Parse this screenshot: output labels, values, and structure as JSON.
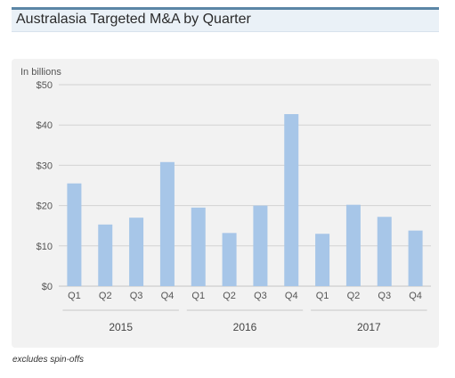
{
  "header": {
    "title": "Australasia Targeted M&A by Quarter",
    "accent_color": "#5b86a6",
    "background_color": "#eaf1f7"
  },
  "footnote": "excludes spin-offs",
  "chart_data": {
    "type": "bar",
    "title": "Australasia Targeted M&A by Quarter",
    "unit_label": "In billions",
    "xlabel": "",
    "ylabel": "",
    "ylim": [
      0,
      50
    ],
    "yticks": [
      "$0",
      "$10",
      "$20",
      "$30",
      "$40",
      "$50"
    ],
    "ytick_values": [
      0,
      10,
      20,
      30,
      40,
      50
    ],
    "grid": true,
    "bar_color": "#a7c6e8",
    "groups": [
      {
        "label": "2015",
        "quarters": [
          "Q1",
          "Q2",
          "Q3",
          "Q4"
        ],
        "values": [
          25.5,
          15.3,
          17.0,
          30.8
        ]
      },
      {
        "label": "2016",
        "quarters": [
          "Q1",
          "Q2",
          "Q3",
          "Q4"
        ],
        "values": [
          19.5,
          13.2,
          20.0,
          42.7
        ]
      },
      {
        "label": "2017",
        "quarters": [
          "Q1",
          "Q2",
          "Q3",
          "Q4"
        ],
        "values": [
          13.0,
          20.2,
          17.2,
          13.8
        ]
      }
    ]
  }
}
